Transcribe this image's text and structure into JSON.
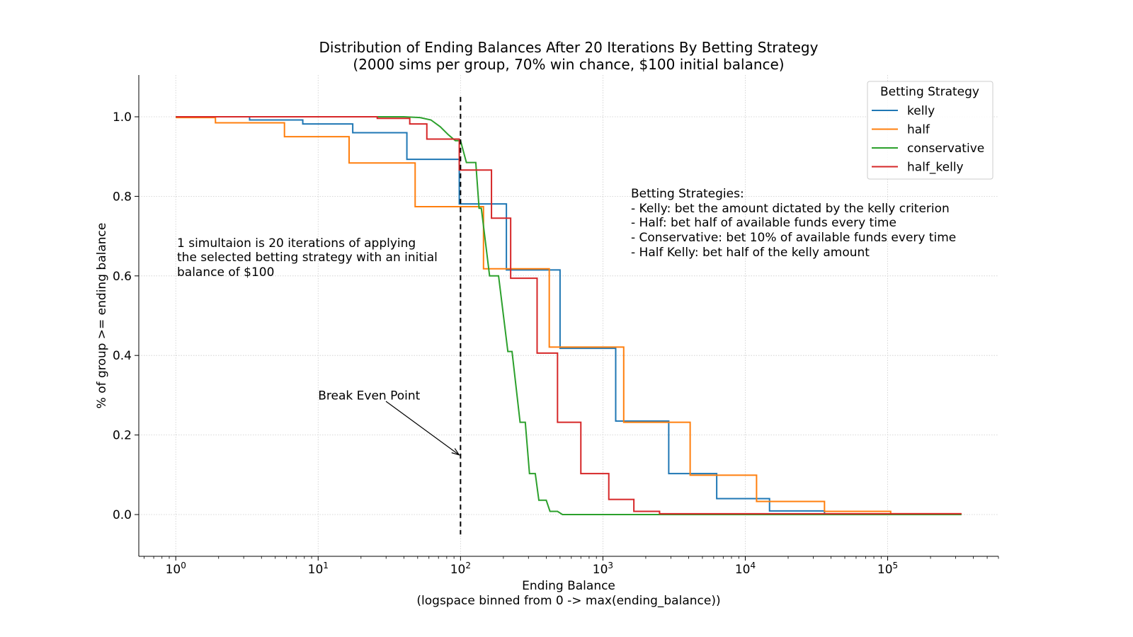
{
  "chart_data": {
    "type": "line",
    "title": "Distribution of Ending Balances After 20 Iterations By Betting Strategy",
    "subtitle": "(2000 sims per group, 70% win chance, $100 initial balance)",
    "xlabel": "Ending Balance",
    "xlabel2": "(logspace binned from 0 -> max(ending_balance))",
    "ylabel": "% of group >= ending balance",
    "x_scale": "log",
    "xlim": [
      0.55,
      600000
    ],
    "ylim": [
      -0.105,
      1.105
    ],
    "grid": true,
    "legend_position": "top-right",
    "legend_title": "Betting Strategy",
    "x_ticks": [
      {
        "value": 1,
        "base": "10",
        "exp": "0"
      },
      {
        "value": 10,
        "base": "10",
        "exp": "1"
      },
      {
        "value": 100,
        "base": "10",
        "exp": "2"
      },
      {
        "value": 1000,
        "base": "10",
        "exp": "3"
      },
      {
        "value": 10000,
        "base": "10",
        "exp": "4"
      },
      {
        "value": 100000,
        "base": "10",
        "exp": "5"
      }
    ],
    "y_ticks": [
      {
        "value": 0.0,
        "label": "0.0"
      },
      {
        "value": 0.2,
        "label": "0.2"
      },
      {
        "value": 0.4,
        "label": "0.4"
      },
      {
        "value": 0.6,
        "label": "0.6"
      },
      {
        "value": 0.8,
        "label": "0.8"
      },
      {
        "value": 1.0,
        "label": "1.0"
      }
    ],
    "series": [
      {
        "name": "kelly",
        "color": "#1f77b4",
        "points": [
          [
            1,
            1.0
          ],
          [
            3.3,
            1.0
          ],
          [
            3.3,
            0.992
          ],
          [
            7.8,
            0.992
          ],
          [
            7.8,
            0.982
          ],
          [
            17.5,
            0.982
          ],
          [
            17.5,
            0.96
          ],
          [
            42,
            0.96
          ],
          [
            42,
            0.893
          ],
          [
            98,
            0.893
          ],
          [
            98,
            0.781
          ],
          [
            210,
            0.781
          ],
          [
            210,
            0.615
          ],
          [
            500,
            0.615
          ],
          [
            500,
            0.418
          ],
          [
            1230,
            0.418
          ],
          [
            1230,
            0.235
          ],
          [
            2900,
            0.235
          ],
          [
            2900,
            0.103
          ],
          [
            6300,
            0.103
          ],
          [
            6300,
            0.04
          ],
          [
            14800,
            0.04
          ],
          [
            14800,
            0.009
          ],
          [
            36000,
            0.009
          ],
          [
            36000,
            0.001
          ],
          [
            330000,
            0.001
          ]
        ]
      },
      {
        "name": "half",
        "color": "#ff7f0e",
        "points": [
          [
            1,
            0.998
          ],
          [
            1.9,
            0.998
          ],
          [
            1.9,
            0.985
          ],
          [
            5.8,
            0.985
          ],
          [
            5.8,
            0.95
          ],
          [
            16.5,
            0.95
          ],
          [
            16.5,
            0.884
          ],
          [
            48,
            0.884
          ],
          [
            48,
            0.774
          ],
          [
            145,
            0.774
          ],
          [
            145,
            0.618
          ],
          [
            420,
            0.618
          ],
          [
            420,
            0.421
          ],
          [
            1400,
            0.421
          ],
          [
            1400,
            0.232
          ],
          [
            4100,
            0.232
          ],
          [
            4100,
            0.099
          ],
          [
            12000,
            0.099
          ],
          [
            12000,
            0.033
          ],
          [
            36000,
            0.033
          ],
          [
            36000,
            0.008
          ],
          [
            105000,
            0.008
          ],
          [
            105000,
            0.002
          ],
          [
            330000,
            0.002
          ]
        ]
      },
      {
        "name": "conservative",
        "color": "#2ca02c",
        "points": [
          [
            1,
            1.0
          ],
          [
            26,
            1.0
          ],
          [
            40,
            1.0
          ],
          [
            52,
            0.998
          ],
          [
            62,
            0.992
          ],
          [
            72,
            0.975
          ],
          [
            82,
            0.955
          ],
          [
            92,
            0.94
          ],
          [
            100,
            0.94
          ],
          [
            110,
            0.885
          ],
          [
            128,
            0.885
          ],
          [
            135,
            0.77
          ],
          [
            140,
            0.77
          ],
          [
            160,
            0.6
          ],
          [
            185,
            0.6
          ],
          [
            215,
            0.41
          ],
          [
            230,
            0.41
          ],
          [
            262,
            0.232
          ],
          [
            285,
            0.232
          ],
          [
            305,
            0.103
          ],
          [
            335,
            0.103
          ],
          [
            355,
            0.036
          ],
          [
            400,
            0.036
          ],
          [
            425,
            0.008
          ],
          [
            480,
            0.008
          ],
          [
            520,
            0.0
          ],
          [
            330000,
            0.0
          ]
        ]
      },
      {
        "name": "half_kelly",
        "color": "#d62728",
        "points": [
          [
            1,
            1.0
          ],
          [
            26,
            1.0
          ],
          [
            26,
            0.996
          ],
          [
            44,
            0.996
          ],
          [
            44,
            0.982
          ],
          [
            58,
            0.982
          ],
          [
            58,
            0.944
          ],
          [
            98,
            0.944
          ],
          [
            98,
            0.866
          ],
          [
            165,
            0.866
          ],
          [
            165,
            0.745
          ],
          [
            225,
            0.745
          ],
          [
            225,
            0.594
          ],
          [
            345,
            0.594
          ],
          [
            345,
            0.406
          ],
          [
            480,
            0.406
          ],
          [
            480,
            0.232
          ],
          [
            700,
            0.232
          ],
          [
            700,
            0.103
          ],
          [
            1100,
            0.103
          ],
          [
            1100,
            0.038
          ],
          [
            1650,
            0.038
          ],
          [
            1650,
            0.008
          ],
          [
            2500,
            0.008
          ],
          [
            2500,
            0.002
          ],
          [
            330000,
            0.002
          ]
        ]
      }
    ],
    "break_even": {
      "x": 100,
      "label": "Break Even Point",
      "label_x": 10,
      "label_y": 0.3,
      "arrow_to_y": 0.15
    },
    "note_left": [
      "1 simultaion is 20 iterations of applying",
      "the selected betting strategy with an initial",
      "balance of $100"
    ],
    "note_right": [
      "Betting Strategies:",
      "- Kelly: bet the amount dictated by the kelly criterion",
      "- Half: bet half of available funds every time",
      "- Conservative: bet 10% of available funds every time",
      "- Half Kelly: bet half of the kelly amount"
    ]
  }
}
